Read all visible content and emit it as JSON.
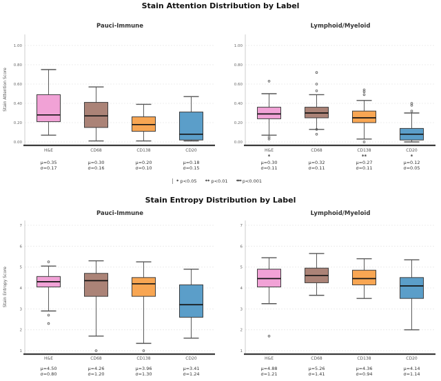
{
  "legend": {
    "items": [
      {
        "marker": "*",
        "label": "p<0.05"
      },
      {
        "marker": "**",
        "label": "p<0.01"
      },
      {
        "marker": "***",
        "label": "p<0.001"
      }
    ]
  },
  "chart_data": [
    {
      "type": "box",
      "title": "Stain Attention Distribution by Label",
      "ylabel": "Stain Attention Score",
      "ylim": [
        0,
        1
      ],
      "ytick_values": [
        0,
        0.2,
        0.4,
        0.6,
        0.8,
        1.0
      ],
      "ytick_labels": [
        "0.00",
        "0.20",
        "0.40",
        "0.60",
        "0.80",
        "1.00"
      ],
      "grid": true,
      "panels": [
        {
          "title": "Pauci-Immune",
          "boxes": [
            {
              "label": "H&E",
              "color": "#f1a2d6",
              "whisker_low": 0.07,
              "q1": 0.21,
              "median": 0.28,
              "q3": 0.49,
              "whisker_high": 0.75,
              "outliers": [],
              "mu": "μ=0.35",
              "sigma": "σ=0.17",
              "sig": ""
            },
            {
              "label": "CD68",
              "color": "#ab8377",
              "whisker_low": 0.01,
              "q1": 0.15,
              "median": 0.27,
              "q3": 0.41,
              "whisker_high": 0.57,
              "outliers": [],
              "mu": "μ=0.30",
              "sigma": "σ=0.16",
              "sig": ""
            },
            {
              "label": "CD138",
              "color": "#f8a653",
              "whisker_low": 0.01,
              "q1": 0.11,
              "median": 0.18,
              "q3": 0.26,
              "whisker_high": 0.39,
              "outliers": [],
              "mu": "μ=0.20",
              "sigma": "σ=0.10",
              "sig": ""
            },
            {
              "label": "CD20",
              "color": "#5b9ec9",
              "whisker_low": 0.01,
              "q1": 0.02,
              "median": 0.08,
              "q3": 0.31,
              "whisker_high": 0.47,
              "outliers": [],
              "mu": "μ=0.18",
              "sigma": "σ=0.15",
              "sig": ""
            }
          ]
        },
        {
          "title": "Lymphoid/Myeloid",
          "boxes": [
            {
              "label": "H&E",
              "color": "#f1a2d6",
              "whisker_low": 0.07,
              "q1": 0.24,
              "median": 0.29,
              "q3": 0.36,
              "whisker_high": 0.5,
              "outliers": [
                0.63,
                0.05,
                0.03
              ],
              "mu": "μ=0.30",
              "sigma": "σ=0.11",
              "sig": "*"
            },
            {
              "label": "CD68",
              "color": "#ab8377",
              "whisker_low": 0.13,
              "q1": 0.25,
              "median": 0.3,
              "q3": 0.36,
              "whisker_high": 0.49,
              "outliers": [
                0.72,
                0.6,
                0.53,
                0.13,
                0.08
              ],
              "mu": "μ=0.32",
              "sigma": "σ=0.11",
              "sig": ""
            },
            {
              "label": "CD138",
              "color": "#f8a653",
              "whisker_low": 0.03,
              "q1": 0.2,
              "median": 0.25,
              "q3": 0.32,
              "whisker_high": 0.43,
              "outliers": [
                0.54,
                0.52,
                0.49,
                0.0
              ],
              "mu": "μ=0.27",
              "sigma": "σ=0.11",
              "sig": "**"
            },
            {
              "label": "CD20",
              "color": "#5b9ec9",
              "whisker_low": 0.0,
              "q1": 0.02,
              "median": 0.08,
              "q3": 0.14,
              "whisker_high": 0.3,
              "outliers": [
                0.4,
                0.38,
                0.32
              ],
              "mu": "μ=0.12",
              "sigma": "σ=0.05",
              "sig": "*"
            }
          ]
        }
      ]
    },
    {
      "type": "box",
      "title": "Stain Entropy Distribution by Label",
      "ylabel": "Stain Entropy Score",
      "ylim": [
        1,
        7
      ],
      "ytick_values": [
        1,
        2,
        3,
        4,
        5,
        6,
        7
      ],
      "ytick_labels": [
        "1",
        "2",
        "3",
        "4",
        "5",
        "6",
        "7"
      ],
      "grid": true,
      "panels": [
        {
          "title": "Pauci-Immune",
          "boxes": [
            {
              "label": "H&E",
              "color": "#f1a2d6",
              "whisker_low": 2.9,
              "q1": 4.05,
              "median": 4.3,
              "q3": 4.55,
              "whisker_high": 5.05,
              "outliers": [
                5.25,
                2.7,
                2.3
              ],
              "mu": "μ=4.50",
              "sigma": "σ=0.80",
              "sig": ""
            },
            {
              "label": "CD68",
              "color": "#ab8377",
              "whisker_low": 1.7,
              "q1": 3.6,
              "median": 4.35,
              "q3": 4.7,
              "whisker_high": 5.3,
              "outliers": [
                1.0
              ],
              "mu": "μ=4.26",
              "sigma": "σ=1.20",
              "sig": ""
            },
            {
              "label": "CD138",
              "color": "#f8a653",
              "whisker_low": 1.35,
              "q1": 3.6,
              "median": 4.2,
              "q3": 4.5,
              "whisker_high": 5.25,
              "outliers": [
                1.0
              ],
              "mu": "μ=3.96",
              "sigma": "σ=1.30",
              "sig": ""
            },
            {
              "label": "CD20",
              "color": "#5b9ec9",
              "whisker_low": 1.6,
              "q1": 2.6,
              "median": 3.2,
              "q3": 4.15,
              "whisker_high": 4.9,
              "outliers": [],
              "mu": "μ=3.41",
              "sigma": "σ=1.24",
              "sig": ""
            }
          ]
        },
        {
          "title": "Lymphoid/Myeloid",
          "boxes": [
            {
              "label": "H&E",
              "color": "#f1a2d6",
              "whisker_low": 3.25,
              "q1": 4.05,
              "median": 4.45,
              "q3": 4.9,
              "whisker_high": 5.45,
              "outliers": [
                1.7
              ],
              "mu": "μ=4.88",
              "sigma": "σ=1.21",
              "sig": ""
            },
            {
              "label": "CD68",
              "color": "#ab8377",
              "whisker_low": 3.65,
              "q1": 4.25,
              "median": 4.6,
              "q3": 4.95,
              "whisker_high": 5.65,
              "outliers": [],
              "mu": "μ=5.26",
              "sigma": "σ=1.41",
              "sig": ""
            },
            {
              "label": "CD138",
              "color": "#f8a653",
              "whisker_low": 3.5,
              "q1": 4.15,
              "median": 4.45,
              "q3": 4.85,
              "whisker_high": 5.4,
              "outliers": [],
              "mu": "μ=4.36",
              "sigma": "σ=0.94",
              "sig": ""
            },
            {
              "label": "CD20",
              "color": "#5b9ec9",
              "whisker_low": 2.0,
              "q1": 3.5,
              "median": 4.1,
              "q3": 4.5,
              "whisker_high": 5.35,
              "outliers": [],
              "mu": "μ=4.14",
              "sigma": "σ=1.14",
              "sig": ""
            }
          ]
        }
      ]
    }
  ]
}
